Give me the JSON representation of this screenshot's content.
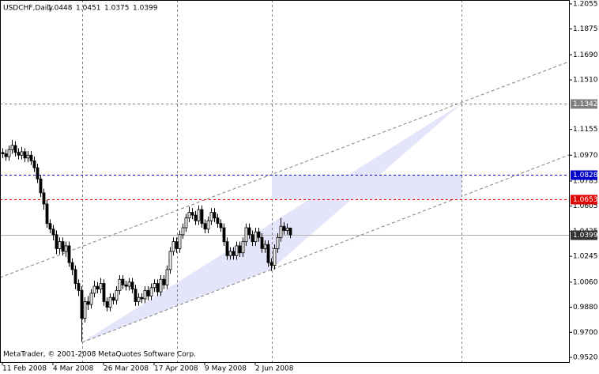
{
  "chart_data": {
    "type": "candlestick",
    "title": "USDCHF,Daily",
    "note": "MetaTrader, © 2001-2008 MetaQuotes Software Corp.",
    "ylim": [
      0.9486,
      1.2083
    ],
    "yticks": [
      {
        "value": 1.2055,
        "label": "1.2055"
      },
      {
        "value": 1.1875,
        "label": "1.1875"
      },
      {
        "value": 1.169,
        "label": "1.1690"
      },
      {
        "value": 1.151,
        "label": "1.1510"
      },
      {
        "value": 1.1155,
        "label": "1.1155"
      },
      {
        "value": 1.097,
        "label": "1.0970"
      },
      {
        "value": 1.0785,
        "label": "1.0785"
      },
      {
        "value": 1.0605,
        "label": "1.0605"
      },
      {
        "value": 1.0425,
        "label": "1.0425"
      },
      {
        "value": 1.0245,
        "label": "1.0245"
      },
      {
        "value": 1.006,
        "label": "1.0060"
      },
      {
        "value": 0.988,
        "label": "0.9880"
      },
      {
        "value": 0.97,
        "label": "0.9700"
      },
      {
        "value": 0.952,
        "label": "0.9520"
      }
    ],
    "xticks": [
      {
        "value": 0,
        "label": "11 Feb 2008"
      },
      {
        "value": 16,
        "label": "4 Mar 2008"
      },
      {
        "value": 32,
        "label": "26 Mar 2008"
      },
      {
        "value": 48,
        "label": "17 Apr 2008"
      },
      {
        "value": 64,
        "label": "9 May 2008"
      },
      {
        "value": 80,
        "label": "2 Jun 2008"
      }
    ],
    "levels": [
      {
        "value": 1.1342,
        "color": "#808080",
        "dash": true
      },
      {
        "value": 1.0828,
        "color": "#0000c8",
        "dash": true
      },
      {
        "value": 1.0653,
        "color": "#e00000",
        "dash": true
      },
      {
        "value": 1.0399,
        "color": "#303030",
        "dash": false
      }
    ],
    "candles": [
      [
        1.099,
        1.102,
        1.095,
        1.098
      ],
      [
        1.098,
        1.101,
        1.093,
        1.096
      ],
      [
        1.096,
        1.104,
        1.093,
        1.101
      ],
      [
        1.101,
        1.108,
        1.098,
        1.104
      ],
      [
        1.104,
        1.107,
        1.096,
        1.099
      ],
      [
        1.099,
        1.102,
        1.094,
        1.097
      ],
      [
        1.097,
        1.103,
        1.094,
        1.0995
      ],
      [
        1.0995,
        1.102,
        1.092,
        1.095
      ],
      [
        1.095,
        1.1,
        1.092,
        1.097
      ],
      [
        1.097,
        1.1,
        1.09,
        1.093
      ],
      [
        1.093,
        1.096,
        1.085,
        1.088
      ],
      [
        1.088,
        1.091,
        1.077,
        1.08
      ],
      [
        1.08,
        1.083,
        1.067,
        1.07
      ],
      [
        1.07,
        1.073,
        1.058,
        1.062
      ],
      [
        1.062,
        1.065,
        1.045,
        1.048
      ],
      [
        1.048,
        1.051,
        1.041,
        1.044
      ],
      [
        1.044,
        1.047,
        1.036,
        1.04
      ],
      [
        1.04,
        1.043,
        1.026,
        1.03
      ],
      [
        1.03,
        1.038,
        1.026,
        1.035
      ],
      [
        1.035,
        1.038,
        1.025,
        1.028
      ],
      [
        1.028,
        1.035,
        1.024,
        1.032
      ],
      [
        1.032,
        1.035,
        1.017,
        1.02
      ],
      [
        1.02,
        1.023,
        1.011,
        1.015
      ],
      [
        1.015,
        1.018,
        1.001,
        1.005
      ],
      [
        1.005,
        1.008,
        0.996,
        1.0
      ],
      [
        1.0,
        1.003,
        0.9632,
        0.98
      ],
      [
        0.98,
        0.995,
        0.977,
        0.992
      ],
      [
        0.992,
        0.996,
        0.986,
        0.99
      ],
      [
        0.99,
        1.001,
        0.987,
        0.998
      ],
      [
        0.998,
        1.007,
        0.995,
        1.003
      ],
      [
        1.003,
        1.006,
        0.998,
        1.001
      ],
      [
        1.001,
        1.009,
        0.998,
        1.005
      ],
      [
        1.005,
        1.008,
        0.989,
        0.992
      ],
      [
        0.992,
        0.995,
        0.985,
        0.988
      ],
      [
        0.988,
        0.998,
        0.985,
        0.995
      ],
      [
        0.995,
        0.998,
        0.99,
        0.993
      ],
      [
        0.993,
        1.003,
        0.99,
        1.0
      ],
      [
        1.0,
        1.011,
        0.997,
        1.008
      ],
      [
        1.008,
        1.011,
        1.001,
        1.004
      ],
      [
        1.004,
        1.007,
        1.0,
        1.003
      ],
      [
        1.003,
        1.009,
        1.0,
        1.006
      ],
      [
        1.006,
        1.009,
        0.998,
        1.001
      ],
      [
        1.001,
        1.004,
        0.989,
        0.992
      ],
      [
        0.992,
        0.998,
        0.989,
        0.995
      ],
      [
        0.995,
        0.998,
        0.991,
        0.994
      ],
      [
        0.994,
        1.003,
        0.991,
        1.0
      ],
      [
        1.0,
        1.003,
        0.993,
        0.996
      ],
      [
        0.996,
        1.005,
        0.993,
        1.002
      ],
      [
        1.002,
        1.008,
        0.999,
        1.005
      ],
      [
        1.005,
        1.008,
        0.996,
        0.999
      ],
      [
        0.999,
        1.011,
        0.996,
        1.008
      ],
      [
        1.008,
        1.011,
        1.001,
        1.004
      ],
      [
        1.004,
        1.018,
        1.001,
        1.015
      ],
      [
        1.015,
        1.031,
        1.012,
        1.028
      ],
      [
        1.028,
        1.038,
        1.025,
        1.035
      ],
      [
        1.035,
        1.038,
        1.027,
        1.03
      ],
      [
        1.03,
        1.043,
        1.027,
        1.04
      ],
      [
        1.04,
        1.048,
        1.037,
        1.045
      ],
      [
        1.045,
        1.055,
        1.042,
        1.052
      ],
      [
        1.052,
        1.06,
        1.049,
        1.056
      ],
      [
        1.056,
        1.059,
        1.051,
        1.054
      ],
      [
        1.054,
        1.057,
        1.047,
        1.05
      ],
      [
        1.05,
        1.061,
        1.047,
        1.058
      ],
      [
        1.058,
        1.061,
        1.045,
        1.048
      ],
      [
        1.048,
        1.051,
        1.041,
        1.044
      ],
      [
        1.044,
        1.053,
        1.041,
        1.05
      ],
      [
        1.05,
        1.059,
        1.047,
        1.056
      ],
      [
        1.056,
        1.059,
        1.049,
        1.052
      ],
      [
        1.052,
        1.055,
        1.045,
        1.048
      ],
      [
        1.048,
        1.051,
        1.042,
        1.045
      ],
      [
        1.045,
        1.048,
        1.032,
        1.035
      ],
      [
        1.035,
        1.038,
        1.022,
        1.025
      ],
      [
        1.025,
        1.031,
        1.022,
        1.028
      ],
      [
        1.028,
        1.031,
        1.022,
        1.025
      ],
      [
        1.025,
        1.035,
        1.022,
        1.032
      ],
      [
        1.032,
        1.035,
        1.024,
        1.027
      ],
      [
        1.027,
        1.038,
        1.024,
        1.035
      ],
      [
        1.035,
        1.048,
        1.032,
        1.045
      ],
      [
        1.045,
        1.048,
        1.037,
        1.04
      ],
      [
        1.04,
        1.043,
        1.032,
        1.035
      ],
      [
        1.035,
        1.045,
        1.032,
        1.042
      ],
      [
        1.042,
        1.045,
        1.035,
        1.038
      ],
      [
        1.038,
        1.041,
        1.027,
        1.03
      ],
      [
        1.03,
        1.036,
        1.027,
        1.033
      ],
      [
        1.033,
        1.036,
        1.017,
        1.02
      ],
      [
        1.02,
        1.023,
        1.014,
        1.018
      ],
      [
        1.018,
        1.033,
        1.015,
        1.03
      ],
      [
        1.03,
        1.041,
        1.027,
        1.038
      ],
      [
        1.038,
        1.052,
        1.035,
        1.046
      ],
      [
        1.046,
        1.049,
        1.04,
        1.043
      ],
      [
        1.043,
        1.048,
        1.04,
        1.0448
      ],
      [
        1.0448,
        1.0451,
        1.0375,
        1.0399
      ]
    ]
  }
}
